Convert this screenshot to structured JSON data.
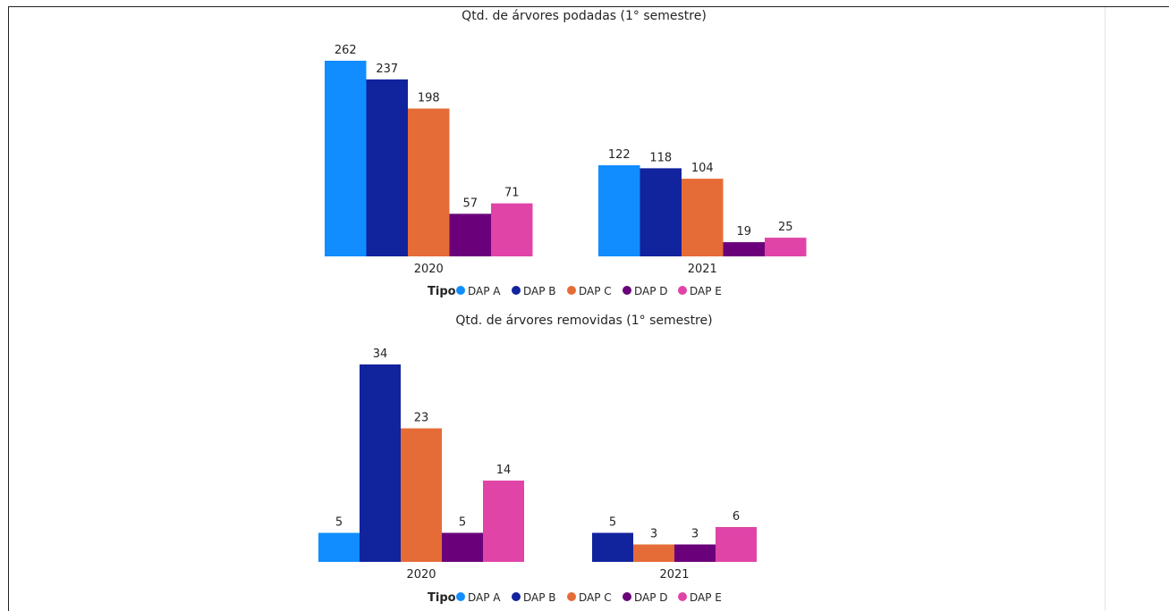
{
  "header_partial": "...",
  "chart_data": [
    {
      "type": "bar",
      "title": "Qtd. de árvores podadas (1° semestre)",
      "categories": [
        "2020",
        "2021"
      ],
      "legend_title": "Tipo",
      "legend_position": "bottom-center",
      "series": [
        {
          "name": "DAP A",
          "color": "#118DFF",
          "values": [
            262,
            122
          ]
        },
        {
          "name": "DAP B",
          "color": "#12239E",
          "values": [
            237,
            118
          ]
        },
        {
          "name": "DAP C",
          "color": "#E66C37",
          "values": [
            198,
            104
          ]
        },
        {
          "name": "DAP D",
          "color": "#6B007B",
          "values": [
            57,
            19
          ]
        },
        {
          "name": "DAP E",
          "color": "#E044A7",
          "values": [
            71,
            25
          ]
        }
      ],
      "ylim": [
        0,
        262
      ],
      "grid": false
    },
    {
      "type": "bar",
      "title": "Qtd. de árvores removidas (1° semestre)",
      "categories": [
        "2020",
        "2021"
      ],
      "legend_title": "Tipo",
      "legend_position": "bottom-center",
      "series": [
        {
          "name": "DAP A",
          "color": "#118DFF",
          "values": [
            5,
            null
          ]
        },
        {
          "name": "DAP B",
          "color": "#12239E",
          "values": [
            34,
            5
          ]
        },
        {
          "name": "DAP C",
          "color": "#E66C37",
          "values": [
            23,
            3
          ]
        },
        {
          "name": "DAP D",
          "color": "#6B007B",
          "values": [
            5,
            3
          ]
        },
        {
          "name": "DAP E",
          "color": "#E044A7",
          "values": [
            14,
            6
          ]
        }
      ],
      "ylim": [
        0,
        34
      ],
      "grid": false
    }
  ]
}
